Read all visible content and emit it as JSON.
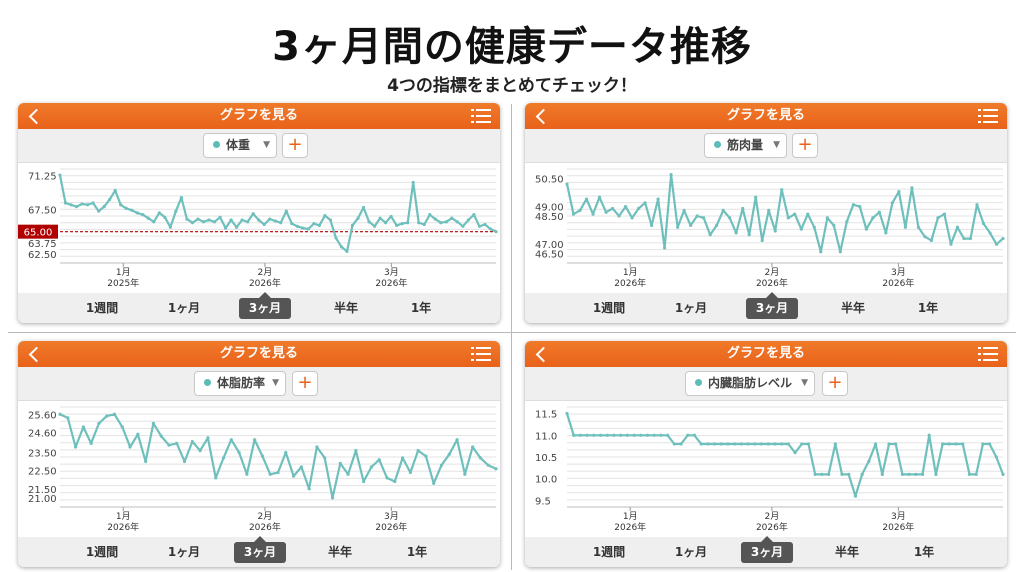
{
  "page": {
    "title": "3ヶ月間の健康データ推移",
    "subtitle": "4つの指標をまとめてチェック！"
  },
  "colors": {
    "accent": "#e8621a",
    "line": "#6fc0bc",
    "target": "#b00000"
  },
  "panels": [
    {
      "header_title": "グラフを見る",
      "metric": "体重",
      "add_label": "+",
      "periods": [
        "1週間",
        "1ヶ月",
        "3ヶ月",
        "半年",
        "1年"
      ],
      "active_period": 2,
      "target_label": "65.00",
      "chart_data": {
        "type": "line",
        "y_ticks": [
          "71.25",
          "67.50",
          "63.75",
          "62.50"
        ],
        "x_ticks": [
          {
            "month": "1月",
            "year": "2025年"
          },
          {
            "month": "2月",
            "year": "2026年"
          },
          {
            "month": "3月",
            "year": "2026年"
          }
        ],
        "ylim": [
          61.5,
          72.0
        ],
        "target": 65.0,
        "values": [
          71.3,
          68.2,
          68.0,
          67.8,
          68.1,
          68.0,
          68.2,
          67.3,
          67.8,
          68.6,
          69.6,
          68.0,
          67.6,
          67.4,
          67.1,
          66.9,
          66.5,
          66.1,
          67.1,
          66.6,
          65.5,
          67.3,
          68.8,
          66.4,
          66.0,
          66.4,
          66.1,
          66.3,
          66.1,
          66.6,
          65.4,
          66.3,
          65.5,
          66.3,
          66.1,
          67.0,
          66.3,
          65.8,
          66.4,
          66.2,
          66.0,
          67.3,
          65.9,
          65.6,
          65.4,
          65.3,
          65.9,
          65.7,
          66.8,
          66.3,
          64.3,
          63.3,
          62.8,
          65.7,
          66.5,
          67.7,
          66.1,
          65.6,
          66.5,
          66.0,
          66.7,
          65.7,
          65.9,
          66.0,
          70.5,
          66.0,
          65.8,
          66.9,
          66.4,
          66.0,
          66.1,
          66.5,
          66.1,
          65.6,
          66.3,
          66.9,
          65.6,
          65.8,
          65.3,
          65.0
        ]
      }
    },
    {
      "header_title": "グラフを見る",
      "metric": "筋肉量",
      "add_label": "+",
      "periods": [
        "1週間",
        "1ヶ月",
        "3ヶ月",
        "半年",
        "1年"
      ],
      "active_period": 2,
      "chart_data": {
        "type": "line",
        "y_ticks": [
          "50.50",
          "49.00",
          "48.50",
          "47.00",
          "46.50"
        ],
        "x_ticks": [
          {
            "month": "1月",
            "year": "2026年"
          },
          {
            "month": "2月",
            "year": "2026年"
          },
          {
            "month": "3月",
            "year": "2026年"
          }
        ],
        "ylim": [
          46.0,
          51.0
        ],
        "values": [
          50.2,
          48.6,
          48.8,
          49.4,
          48.6,
          49.5,
          48.7,
          48.9,
          48.5,
          49.0,
          48.4,
          48.9,
          49.2,
          48.0,
          49.4,
          46.8,
          50.7,
          47.9,
          48.8,
          48.0,
          48.5,
          48.4,
          47.5,
          48.0,
          48.8,
          48.4,
          47.6,
          48.9,
          47.5,
          49.5,
          47.2,
          48.8,
          47.7,
          49.9,
          48.4,
          48.6,
          47.8,
          48.6,
          47.9,
          46.6,
          48.4,
          48.0,
          46.6,
          48.2,
          49.1,
          49.0,
          47.8,
          48.4,
          48.7,
          47.6,
          49.2,
          49.8,
          47.9,
          50.0,
          47.9,
          47.4,
          47.2,
          48.4,
          48.6,
          47.0,
          47.9,
          47.3,
          47.3,
          49.1,
          48.1,
          47.6,
          47.0,
          47.3
        ]
      }
    },
    {
      "header_title": "グラフを見る",
      "metric": "体脂肪率",
      "add_label": "+",
      "periods": [
        "1週間",
        "1ヶ月",
        "3ヶ月",
        "半年",
        "1年"
      ],
      "active_period": 2,
      "chart_data": {
        "type": "line",
        "y_ticks": [
          "25.60",
          "24.60",
          "23.50",
          "22.50",
          "21.50",
          "21.00"
        ],
        "x_ticks": [
          {
            "month": "1月",
            "year": "2026年"
          },
          {
            "month": "2月",
            "year": "2026年"
          },
          {
            "month": "3月",
            "year": "2026年"
          }
        ],
        "ylim": [
          20.5,
          26.0
        ],
        "values": [
          25.6,
          25.4,
          23.8,
          24.9,
          24.0,
          25.1,
          25.5,
          25.6,
          24.9,
          23.8,
          24.5,
          23.0,
          25.1,
          24.4,
          23.9,
          24.0,
          23.0,
          24.1,
          23.6,
          24.3,
          22.1,
          23.2,
          24.2,
          23.5,
          22.3,
          24.2,
          23.3,
          22.3,
          22.4,
          23.5,
          22.2,
          22.7,
          21.5,
          23.8,
          23.2,
          21.0,
          22.9,
          22.3,
          23.6,
          21.9,
          22.7,
          23.1,
          22.1,
          21.9,
          23.2,
          22.4,
          23.6,
          23.3,
          21.8,
          22.8,
          23.4,
          24.2,
          22.3,
          23.8,
          23.2,
          22.8,
          22.6
        ]
      }
    },
    {
      "header_title": "グラフを見る",
      "metric": "内臓脂肪レベル",
      "add_label": "+",
      "periods": [
        "1週間",
        "1ヶ月",
        "3ヶ月",
        "半年",
        "1年"
      ],
      "active_period": 2,
      "chart_data": {
        "type": "line",
        "y_ticks": [
          "11.5",
          "11.0",
          "10.5",
          "10.0",
          "9.5"
        ],
        "x_ticks": [
          {
            "month": "1月",
            "year": "2026年"
          },
          {
            "month": "2月",
            "year": "2026年"
          },
          {
            "month": "3月",
            "year": "2026年"
          }
        ],
        "ylim": [
          9.35,
          11.65
        ],
        "values": [
          11.5,
          11.0,
          11.0,
          11.0,
          11.0,
          11.0,
          11.0,
          11.0,
          11.0,
          11.0,
          11.0,
          11.0,
          11.0,
          11.0,
          11.0,
          11.0,
          10.8,
          10.8,
          11.0,
          11.0,
          10.8,
          10.8,
          10.8,
          10.8,
          10.8,
          10.8,
          10.8,
          10.8,
          10.8,
          10.8,
          10.8,
          10.8,
          10.8,
          10.8,
          10.6,
          10.8,
          10.8,
          10.1,
          10.1,
          10.1,
          10.8,
          10.1,
          10.1,
          9.6,
          10.1,
          10.4,
          10.8,
          10.1,
          10.8,
          10.8,
          10.1,
          10.1,
          10.1,
          10.1,
          11.0,
          10.1,
          10.8,
          10.8,
          10.8,
          10.8,
          10.1,
          10.1,
          10.8,
          10.8,
          10.5,
          10.1
        ]
      }
    }
  ]
}
